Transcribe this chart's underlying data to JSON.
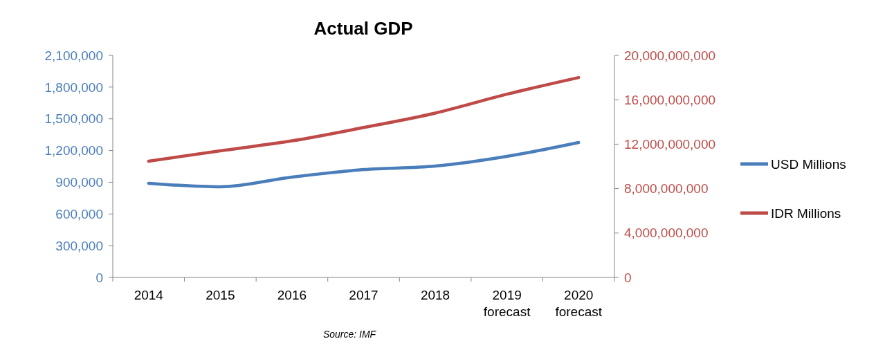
{
  "chart_data": {
    "type": "line",
    "title": "Actual GDP",
    "categories": [
      "2014",
      "2015",
      "2016",
      "2017",
      "2018",
      "2019 forecast",
      "2020 forecast"
    ],
    "series": [
      {
        "name": "USD Millions",
        "color": "#4a7ebb",
        "values": [
          890000,
          857000,
          949000,
          1020000,
          1053000,
          1145000,
          1276000
        ]
      },
      {
        "name": "IDR Millions",
        "color": "#be4b48",
        "axis": "y2",
        "values": [
          10470000000,
          11400000000,
          12300000000,
          13500000000,
          14800000000,
          16500000000,
          18000000000
        ]
      }
    ],
    "ylim": [
      0,
      2100000
    ],
    "yticks": [
      {
        "value": 0,
        "label": "0"
      },
      {
        "value": 300000,
        "label": "300,000"
      },
      {
        "value": 600000,
        "label": "600,000"
      },
      {
        "value": 900000,
        "label": "900,000"
      },
      {
        "value": 1200000,
        "label": "1,200,000"
      },
      {
        "value": 1500000,
        "label": "1,500,000"
      },
      {
        "value": 1800000,
        "label": "1,800,000"
      },
      {
        "value": 2100000,
        "label": "2,100,000"
      }
    ],
    "y2lim": [
      0,
      20000000000
    ],
    "y2ticks": [
      {
        "value": 0,
        "label": "0"
      },
      {
        "value": 4000000000,
        "label": "4,000,000,000"
      },
      {
        "value": 8000000000,
        "label": "8,000,000,000"
      },
      {
        "value": 12000000000,
        "label": "12,000,000,000"
      },
      {
        "value": 16000000000,
        "label": "16,000,000,000"
      },
      {
        "value": 20000000000,
        "label": "20,000,000,000"
      }
    ],
    "legend": "right",
    "grid": false,
    "annotations": [
      "Source: IMF"
    ]
  }
}
